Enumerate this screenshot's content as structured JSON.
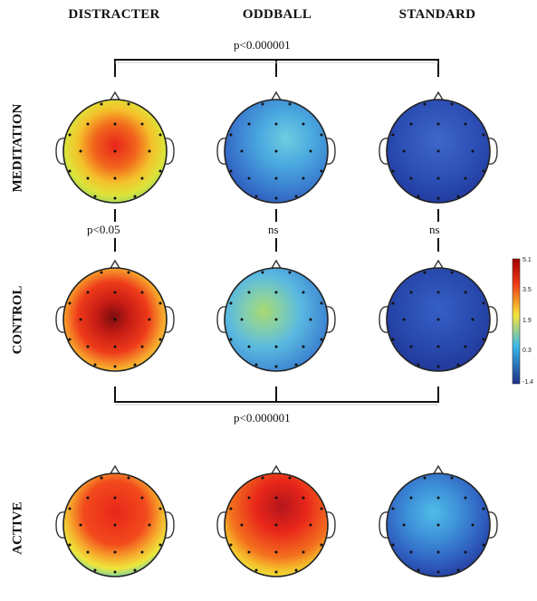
{
  "columns": [
    "DISTRACTER",
    "ODDBALL",
    "STANDARD"
  ],
  "rows": [
    "MEDITATION",
    "CONTROL",
    "ACTIVE"
  ],
  "stats": {
    "top_bracket": "p<0.000001",
    "bottom_bracket": "p<0.000001",
    "col1_between": "p<0.05",
    "col2_between": "ns",
    "col3_between": "ns"
  },
  "colorbar": {
    "ticks": [
      "5.1",
      "3.5",
      "1.9",
      "0.3",
      "-1.4"
    ],
    "colors": [
      "#a50000",
      "#f03a14",
      "#f7e53a",
      "#38b8e8",
      "#1c2f8a"
    ]
  },
  "topomaps": [
    {
      "name": "meditation-distracter",
      "level": 0.65
    },
    {
      "name": "meditation-oddball",
      "level": 0.28
    },
    {
      "name": "meditation-standard",
      "level": 0.05
    },
    {
      "name": "control-distracter",
      "level": 0.92
    },
    {
      "name": "control-oddball",
      "level": 0.38
    },
    {
      "name": "control-standard",
      "level": 0.04
    },
    {
      "name": "active-distracter",
      "level": 0.72
    },
    {
      "name": "active-oddball",
      "level": 0.8
    },
    {
      "name": "active-standard",
      "level": 0.22
    }
  ]
}
